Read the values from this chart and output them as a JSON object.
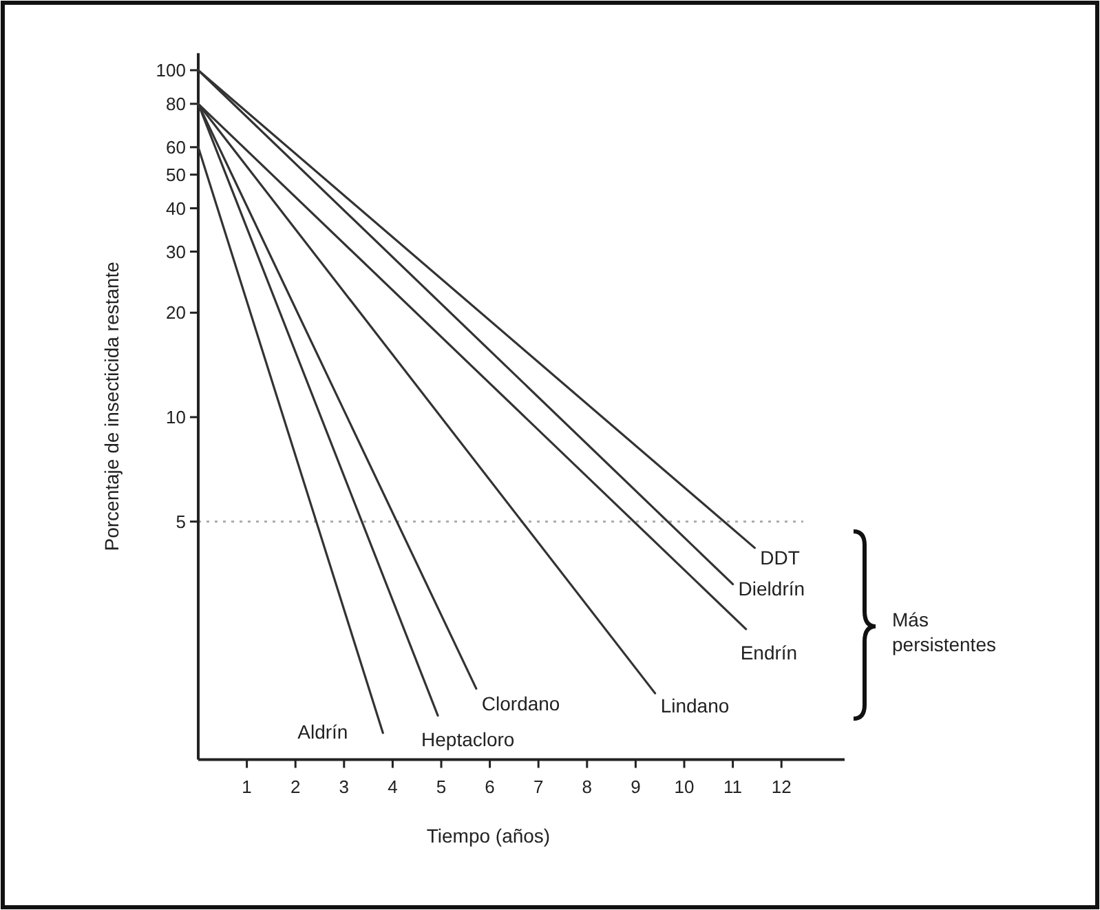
{
  "chart_data": {
    "type": "line",
    "xlabel": "Tiempo (años)",
    "ylabel": "Porcentaje de insecticida restante",
    "log": "y",
    "xlim": [
      0,
      13.3
    ],
    "xticks": [
      1,
      2,
      3,
      4,
      5,
      6,
      7,
      8,
      9,
      10,
      11,
      12
    ],
    "ylim": [
      1.03,
      112
    ],
    "yticks": [
      5,
      10,
      20,
      30,
      40,
      50,
      60,
      80,
      100
    ],
    "grid": false,
    "marker": "none",
    "line_style": "solid",
    "series": [
      {
        "name": "DDT",
        "color": "#333333",
        "x": [
          0,
          11.45
        ],
        "values": [
          100,
          4.2
        ]
      },
      {
        "name": "Dieldrín",
        "color": "#333333",
        "x": [
          0,
          11
        ],
        "values": [
          100,
          3.3
        ]
      },
      {
        "name": "Endrín",
        "color": "#333333",
        "x": [
          0,
          11.27
        ],
        "values": [
          80,
          2.45
        ]
      },
      {
        "name": "Lindano",
        "color": "#333333",
        "x": [
          0,
          9.4
        ],
        "values": [
          80,
          1.6
        ]
      },
      {
        "name": "Clordano",
        "color": "#333333",
        "x": [
          0,
          5.72
        ],
        "values": [
          80,
          1.65
        ]
      },
      {
        "name": "Heptacloro",
        "color": "#333333",
        "x": [
          0,
          4.93
        ],
        "values": [
          80,
          1.38
        ]
      },
      {
        "name": "Aldrín",
        "color": "#333333",
        "x": [
          0,
          3.8
        ],
        "values": [
          60,
          1.23
        ]
      }
    ],
    "ref_lines": [
      {
        "axis": "y",
        "value": 5,
        "color": "#aaaaaa",
        "line_style": "dotted"
      }
    ],
    "annotations": [
      "Más persistentes"
    ]
  }
}
